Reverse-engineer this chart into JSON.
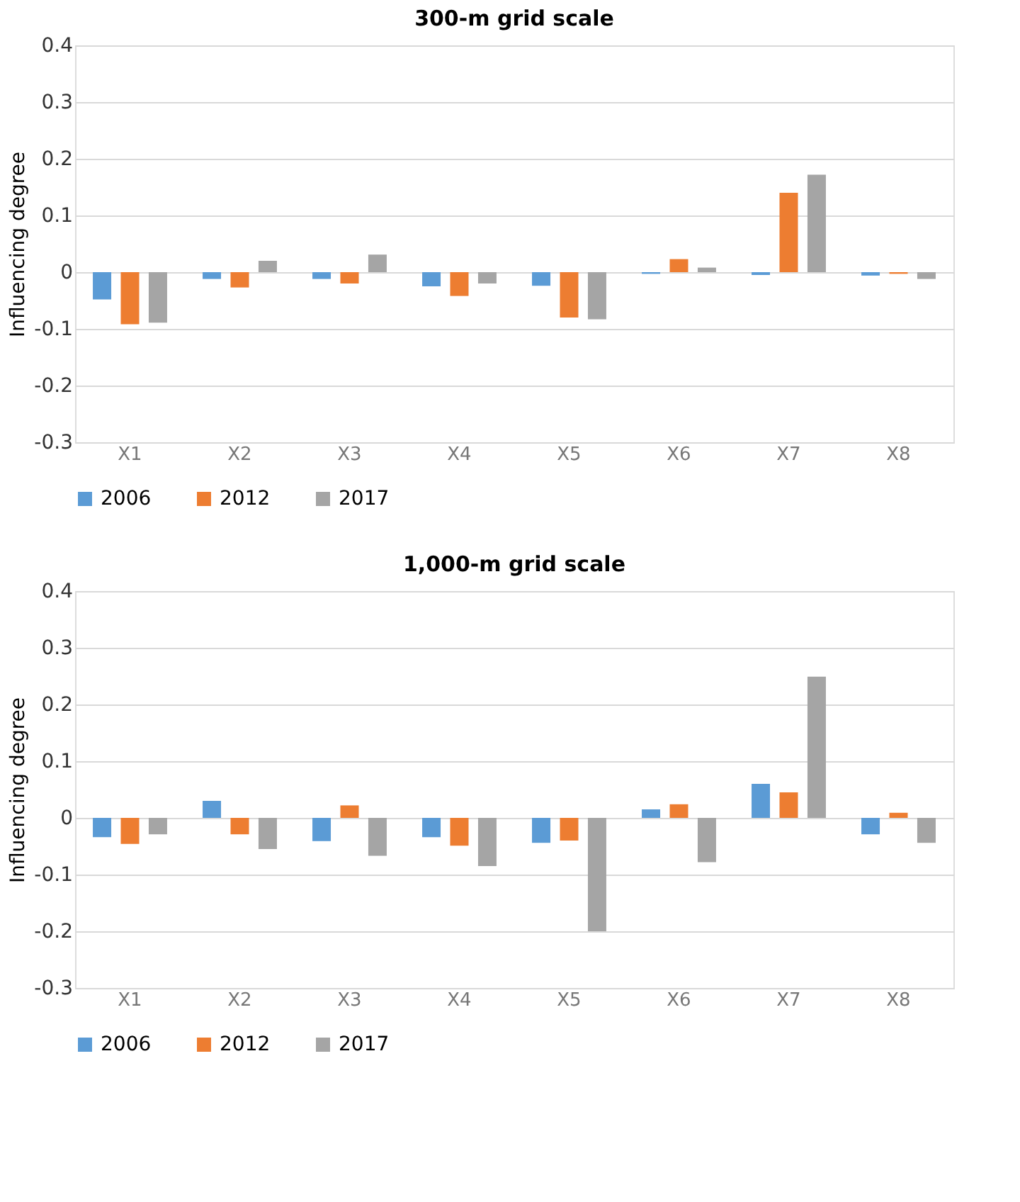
{
  "chart_data": [
    {
      "type": "bar",
      "title": "300-m grid scale",
      "ylabel": "Influencing degree",
      "categories": [
        "X1",
        "X2",
        "X3",
        "X4",
        "X5",
        "X6",
        "X7",
        "X8"
      ],
      "series": [
        {
          "name": "2006",
          "color": "#5b9bd5",
          "values": [
            -0.048,
            -0.012,
            -0.012,
            -0.025,
            -0.024,
            -0.003,
            -0.005,
            -0.006
          ]
        },
        {
          "name": "2012",
          "color": "#ed7d31",
          "values": [
            -0.092,
            -0.027,
            -0.02,
            -0.042,
            -0.08,
            0.023,
            0.14,
            -0.003
          ]
        },
        {
          "name": "2017",
          "color": "#a5a5a5",
          "values": [
            -0.089,
            0.02,
            0.031,
            -0.02,
            -0.083,
            0.008,
            0.172,
            -0.012
          ]
        }
      ],
      "ylim": [
        -0.3,
        0.4
      ],
      "yticks": [
        -0.3,
        -0.2,
        -0.1,
        0,
        0.1,
        0.2,
        0.3,
        0.4
      ],
      "grid": "y",
      "legend": "bottom"
    },
    {
      "type": "bar",
      "title": "1,000-m grid scale",
      "ylabel": "Influencing degree",
      "categories": [
        "X1",
        "X2",
        "X3",
        "X4",
        "X5",
        "X6",
        "X7",
        "X8"
      ],
      "series": [
        {
          "name": "2006",
          "color": "#5b9bd5",
          "values": [
            -0.034,
            0.03,
            -0.041,
            -0.034,
            -0.044,
            0.015,
            0.06,
            -0.029
          ]
        },
        {
          "name": "2012",
          "color": "#ed7d31",
          "values": [
            -0.046,
            -0.029,
            0.022,
            -0.049,
            -0.04,
            0.024,
            0.045,
            0.009
          ]
        },
        {
          "name": "2017",
          "color": "#a5a5a5",
          "values": [
            -0.029,
            -0.055,
            -0.067,
            -0.085,
            -0.2,
            -0.078,
            0.249,
            -0.044
          ]
        }
      ],
      "ylim": [
        -0.3,
        0.4
      ],
      "yticks": [
        -0.3,
        -0.2,
        -0.1,
        0,
        0.1,
        0.2,
        0.3,
        0.4
      ],
      "grid": "y",
      "legend": "bottom"
    }
  ]
}
